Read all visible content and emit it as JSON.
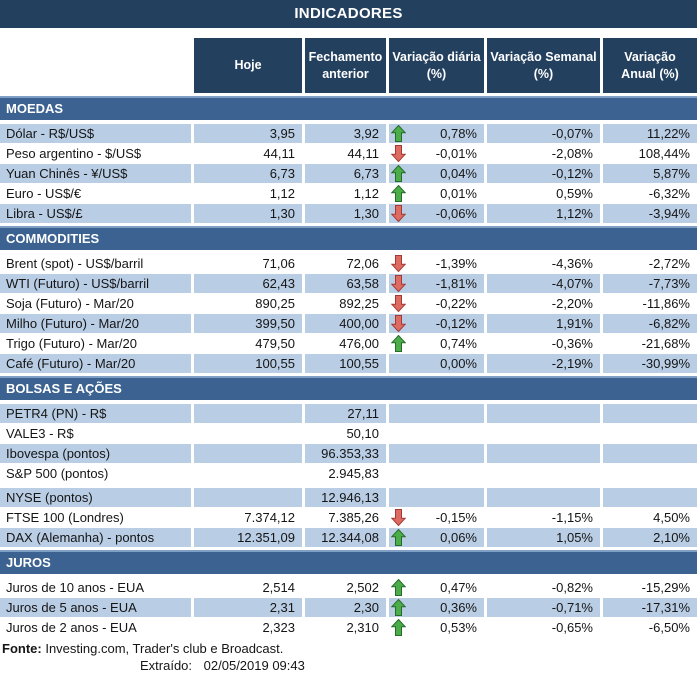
{
  "title": "INDICADORES",
  "columns": [
    {
      "line1": "Hoje",
      "line2": ""
    },
    {
      "line1": "Fechamento",
      "line2": "anterior"
    },
    {
      "line1": "Variação diária",
      "line2": "(%)"
    },
    {
      "line1": "Variação Semanal",
      "line2": "(%)"
    },
    {
      "line1": "Variação",
      "line2": "Anual (%)"
    }
  ],
  "colors": {
    "header_navy": "#24405F",
    "section_band_blue": "#3B6291",
    "band_top_border": "#7F9FC5",
    "row_light_blue": "#B9CDE5",
    "arrow_up_fill": "#4BAD49",
    "arrow_up_border": "#276B2B",
    "arrow_down_fill": "#DE6B62",
    "arrow_down_border": "#A23B35"
  },
  "sections": [
    {
      "name": "MOEDAS",
      "rows": [
        {
          "label": "Dólar - R$/US$",
          "hoje": "3,95",
          "fechamento": "3,92",
          "arrow": "up",
          "var_diaria": "0,78%",
          "var_semanal": "-0,07%",
          "var_anual": "11,22%",
          "shade": "blue"
        },
        {
          "label": "Peso argentino - $/US$",
          "hoje": "44,11",
          "fechamento": "44,11",
          "arrow": "down",
          "var_diaria": "-0,01%",
          "var_semanal": "-2,08%",
          "var_anual": "108,44%",
          "shade": "white"
        },
        {
          "label": "Yuan Chinês - ¥/US$",
          "hoje": "6,73",
          "fechamento": "6,73",
          "arrow": "up",
          "var_diaria": "0,04%",
          "var_semanal": "-0,12%",
          "var_anual": "5,87%",
          "shade": "blue"
        },
        {
          "label": "Euro - US$/€",
          "hoje": "1,12",
          "fechamento": "1,12",
          "arrow": "up",
          "var_diaria": "0,01%",
          "var_semanal": "0,59%",
          "var_anual": "-6,32%",
          "shade": "white"
        },
        {
          "label": "Libra - US$/£",
          "hoje": "1,30",
          "fechamento": "1,30",
          "arrow": "down",
          "var_diaria": "-0,06%",
          "var_semanal": "1,12%",
          "var_anual": "-3,94%",
          "shade": "blue"
        }
      ]
    },
    {
      "name": "COMMODITIES",
      "rows": [
        {
          "label": "Brent (spot) - US$/barril",
          "hoje": "71,06",
          "fechamento": "72,06",
          "arrow": "down",
          "var_diaria": "-1,39%",
          "var_semanal": "-4,36%",
          "var_anual": "-2,72%",
          "shade": "white"
        },
        {
          "label": "WTI (Futuro) - US$/barril",
          "hoje": "62,43",
          "fechamento": "63,58",
          "arrow": "down",
          "var_diaria": "-1,81%",
          "var_semanal": "-4,07%",
          "var_anual": "-7,73%",
          "shade": "blue"
        },
        {
          "label": "Soja (Futuro) - Mar/20",
          "hoje": "890,25",
          "fechamento": "892,25",
          "arrow": "down",
          "var_diaria": "-0,22%",
          "var_semanal": "-2,20%",
          "var_anual": "-11,86%",
          "shade": "white"
        },
        {
          "label": "Milho (Futuro) - Mar/20",
          "hoje": "399,50",
          "fechamento": "400,00",
          "arrow": "down",
          "var_diaria": "-0,12%",
          "var_semanal": "1,91%",
          "var_anual": "-6,82%",
          "shade": "blue"
        },
        {
          "label": "Trigo (Futuro) - Mar/20",
          "hoje": "479,50",
          "fechamento": "476,00",
          "arrow": "up",
          "var_diaria": "0,74%",
          "var_semanal": "-0,36%",
          "var_anual": "-21,68%",
          "shade": "white"
        },
        {
          "label": "Café (Futuro) - Mar/20",
          "hoje": "100,55",
          "fechamento": "100,55",
          "arrow": "",
          "var_diaria": "0,00%",
          "var_semanal": "-2,19%",
          "var_anual": "-30,99%",
          "shade": "blue"
        }
      ]
    },
    {
      "name": "BOLSAS E AÇÕES",
      "rows": [
        {
          "label": "PETR4 (PN) - R$",
          "hoje": "",
          "fechamento": "27,11",
          "arrow": "",
          "var_diaria": "",
          "var_semanal": "",
          "var_anual": "",
          "shade": "blue"
        },
        {
          "label": "VALE3 - R$",
          "hoje": "",
          "fechamento": "50,10",
          "arrow": "",
          "var_diaria": "",
          "var_semanal": "",
          "var_anual": "",
          "shade": "white"
        },
        {
          "label": "Ibovespa (pontos)",
          "hoje": "",
          "fechamento": "96.353,33",
          "arrow": "",
          "var_diaria": "",
          "var_semanal": "",
          "var_anual": "",
          "shade": "blue"
        },
        {
          "label": "S&P 500 (pontos)",
          "hoje": "",
          "fechamento": "2.945,83",
          "arrow": "",
          "var_diaria": "",
          "var_semanal": "",
          "var_anual": "",
          "shade": "white"
        },
        {
          "label": "NYSE (pontos)",
          "hoje": "",
          "fechamento": "12.946,13",
          "arrow": "",
          "var_diaria": "",
          "var_semanal": "",
          "var_anual": "",
          "shade": "blue",
          "spacer_before": true
        },
        {
          "label": "FTSE 100 (Londres)",
          "hoje": "7.374,12",
          "fechamento": "7.385,26",
          "arrow": "down",
          "var_diaria": "-0,15%",
          "var_semanal": "-1,15%",
          "var_anual": "4,50%",
          "shade": "white"
        },
        {
          "label": "DAX (Alemanha) - pontos",
          "hoje": "12.351,09",
          "fechamento": "12.344,08",
          "arrow": "up",
          "var_diaria": "0,06%",
          "var_semanal": "1,05%",
          "var_anual": "2,10%",
          "shade": "blue"
        }
      ]
    },
    {
      "name": "JUROS",
      "rows": [
        {
          "label": "Juros de 10 anos - EUA",
          "hoje": "2,514",
          "fechamento": "2,502",
          "arrow": "up",
          "var_diaria": "0,47%",
          "var_semanal": "-0,82%",
          "var_anual": "-15,29%",
          "shade": "white"
        },
        {
          "label": "Juros de 5 anos - EUA",
          "hoje": "2,31",
          "fechamento": "2,30",
          "arrow": "up",
          "var_diaria": "0,36%",
          "var_semanal": "-0,71%",
          "var_anual": "-17,31%",
          "shade": "blue"
        },
        {
          "label": "Juros de 2 anos - EUA",
          "hoje": "2,323",
          "fechamento": "2,310",
          "arrow": "up",
          "var_diaria": "0,53%",
          "var_semanal": "-0,65%",
          "var_anual": "-6,50%",
          "shade": "white"
        }
      ]
    }
  ],
  "footer": {
    "fonte_label": "Fonte:",
    "fonte_text": "Investing.com, Trader's club e Broadcast.",
    "extraido_label": "Extraído:",
    "extraido_value": "02/05/2019 09:43"
  }
}
